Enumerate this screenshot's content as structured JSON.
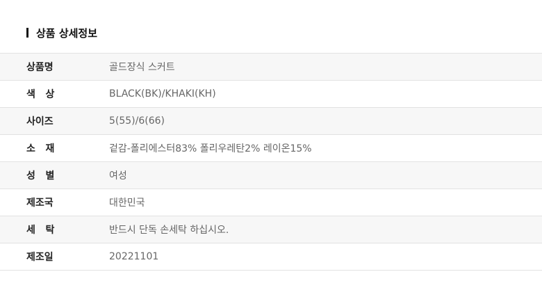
{
  "section_title": "상품 상세정보",
  "rows": [
    {
      "label": "상품명",
      "value": "골드장식 스커트"
    },
    {
      "label": "색   상",
      "value": "BLACK(BK)/KHAKI(KH)"
    },
    {
      "label": "사이즈",
      "value": "5(55)/6(66)"
    },
    {
      "label": "소   재",
      "value": "겉감-폴리에스터83% 폴리우레탄2% 레이온15%"
    },
    {
      "label": "성   별",
      "value": "여성"
    },
    {
      "label": "제조국",
      "value": "대한민국"
    },
    {
      "label": "세   탁",
      "value": "반드시 단독 손세탁 하십시오."
    },
    {
      "label": "제조일",
      "value": "20221101"
    }
  ]
}
